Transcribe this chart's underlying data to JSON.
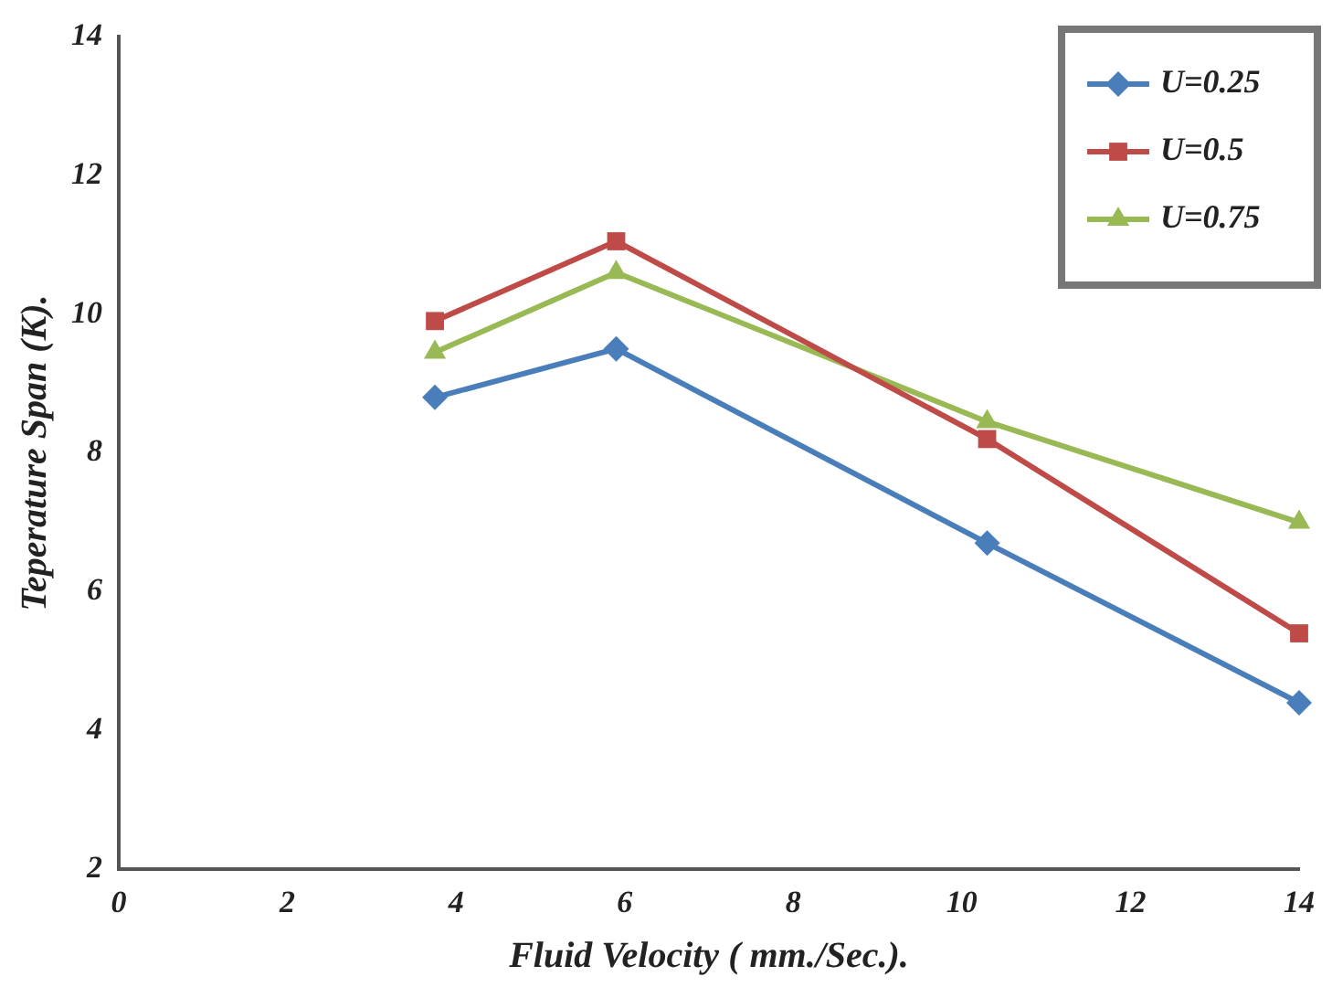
{
  "chart_data": {
    "type": "line",
    "xlabel": "Fluid Velocity ( mm./Sec.).",
    "ylabel": "Teperature Span (K).",
    "xlim": [
      0,
      14
    ],
    "xticks": [
      0,
      2,
      4,
      6,
      8,
      10,
      12,
      14
    ],
    "ylim": [
      2,
      14
    ],
    "yticks": [
      2,
      4,
      6,
      8,
      10,
      12,
      14
    ],
    "grid": false,
    "legend": "top right",
    "series": [
      {
        "name": "U=0.25",
        "color": "#4a7ebb",
        "marker": "diamond",
        "x": [
          3.75,
          5.9,
          10.3,
          14
        ],
        "values": [
          8.8,
          9.5,
          6.7,
          4.4
        ]
      },
      {
        "name": "U=0.5",
        "color": "#be4b48",
        "marker": "square",
        "x": [
          3.75,
          5.9,
          10.3,
          14
        ],
        "values": [
          9.9,
          11.05,
          8.2,
          5.4
        ]
      },
      {
        "name": "U=0.75",
        "color": "#98b954",
        "marker": "triangle",
        "x": [
          3.75,
          5.9,
          10.3,
          14
        ],
        "values": [
          9.45,
          10.6,
          8.45,
          7.0
        ]
      }
    ]
  }
}
